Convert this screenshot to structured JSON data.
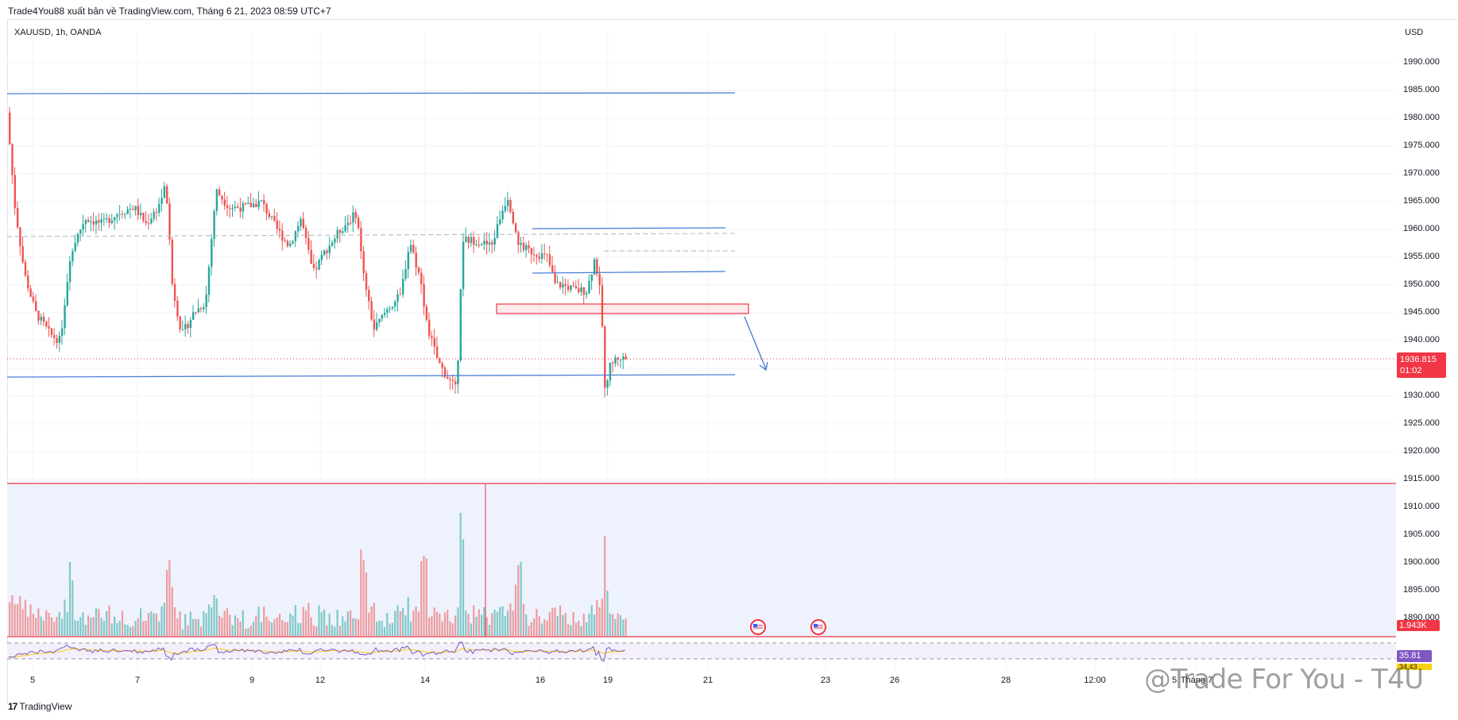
{
  "header": {
    "publisher": "Trade4You88 xuất bản về TradingView.com, Tháng 6 21, 2023 08:59 UTC+7"
  },
  "chart": {
    "symbol": "XAUUSD, 1h, OANDA",
    "currency": "USD",
    "last_price": "1936.815",
    "countdown": "01:02",
    "volume_label": "1.943K",
    "rsi_value": "35.81",
    "rsi_value2": "34.43",
    "colors": {
      "up": "#26a69a",
      "down": "#ef5350",
      "trendline": "#4a7fd4",
      "price_line": "#f23645",
      "volume_panel_bg": "#eef2fd",
      "rsi_line": "#7e57c2",
      "rsi_ma": "#f5d20a"
    },
    "drawings": [
      "resistance-line",
      "support-line",
      "range-top-line",
      "range-bottom-line",
      "supply-zone",
      "forecast-arrow",
      "high-impact-event-icon",
      "high-impact-event-icon"
    ]
  },
  "branding": {
    "logo_mark": "17",
    "name": "TradingView"
  },
  "watermark": "@Trade For You - T4U",
  "chart_data": {
    "type": "candlestick",
    "title": "XAUUSD, 1h, OANDA",
    "ylabel": "USD",
    "ylim": [
      1885,
      1993
    ],
    "y_ticks": [
      "1990.000",
      "1985.000",
      "1980.000",
      "1975.000",
      "1970.000",
      "1965.000",
      "1960.000",
      "1955.000",
      "1950.000",
      "1945.000",
      "1940.000",
      "1935.000",
      "1930.000",
      "1925.000",
      "1920.000",
      "1915.000",
      "1910.000",
      "1905.000",
      "1900.000",
      "1895.000",
      "1890.000"
    ],
    "x_ticks": [
      "5",
      "7",
      "9",
      "12",
      "14",
      "16",
      "19",
      "21",
      "23",
      "26",
      "28",
      "12:00",
      "5",
      "Tháng 7"
    ],
    "levels": {
      "resistance": 1984.5,
      "support": 1935.2,
      "range_top": 1960.3,
      "range_bottom": 1952.4,
      "supply_zone": [
        1945.2,
        1946.8
      ],
      "last_price": 1936.815
    },
    "price_path": [
      [
        0,
        1981
      ],
      [
        10,
        1964
      ],
      [
        22,
        1952
      ],
      [
        36,
        1945
      ],
      [
        55,
        1941
      ],
      [
        67,
        1940
      ],
      [
        80,
        1956
      ],
      [
        98,
        1962
      ],
      [
        120,
        1961
      ],
      [
        140,
        1963
      ],
      [
        160,
        1964
      ],
      [
        175,
        1961
      ],
      [
        190,
        1964
      ],
      [
        200,
        1968
      ],
      [
        208,
        1950
      ],
      [
        220,
        1941
      ],
      [
        235,
        1945
      ],
      [
        250,
        1947
      ],
      [
        263,
        1967
      ],
      [
        280,
        1964
      ],
      [
        300,
        1964
      ],
      [
        320,
        1965
      ],
      [
        340,
        1960
      ],
      [
        355,
        1957
      ],
      [
        370,
        1962
      ],
      [
        385,
        1952
      ],
      [
        400,
        1956
      ],
      [
        420,
        1960
      ],
      [
        440,
        1963
      ],
      [
        450,
        1950
      ],
      [
        462,
        1942
      ],
      [
        480,
        1946
      ],
      [
        495,
        1948
      ],
      [
        507,
        1958
      ],
      [
        520,
        1951
      ],
      [
        530,
        1942
      ],
      [
        543,
        1936
      ],
      [
        556,
        1933
      ],
      [
        566,
        1931
      ],
      [
        573,
        1958
      ],
      [
        590,
        1958
      ],
      [
        610,
        1957
      ],
      [
        620,
        1962
      ],
      [
        630,
        1966
      ],
      [
        645,
        1957
      ],
      [
        660,
        1956
      ],
      [
        680,
        1955
      ],
      [
        690,
        1950
      ],
      [
        700,
        1950
      ],
      [
        715,
        1949
      ],
      [
        730,
        1949
      ],
      [
        740,
        1955
      ],
      [
        748,
        1947
      ],
      [
        752,
        1931
      ],
      [
        760,
        1936
      ],
      [
        770,
        1937
      ],
      [
        778,
        1936.8
      ]
    ],
    "volume_spikes": [
      78,
      200,
      445,
      522,
      570,
      640,
      750
    ]
  }
}
